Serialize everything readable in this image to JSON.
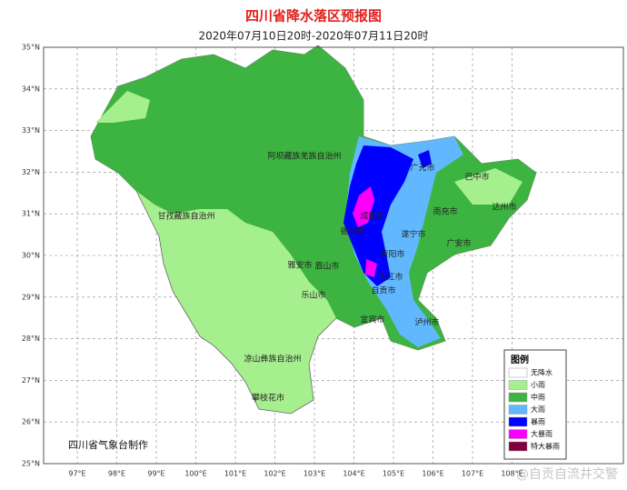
{
  "title": "四川省降水落区预报图",
  "subtitle": "2020年07月10日20时-2020年07月11日20时",
  "lat_labels": [
    "35°N",
    "34°N",
    "33°N",
    "32°N",
    "31°N",
    "30°N",
    "29°N",
    "28°N",
    "27°N",
    "26°N",
    "25°N"
  ],
  "lon_labels": [
    "97°E",
    "98°E",
    "99°E",
    "100°E",
    "101°E",
    "102°E",
    "103°E",
    "104°E",
    "105°E",
    "106°E",
    "107°E",
    "108°E"
  ],
  "places": [
    "阿坝藏族羌族自治州",
    "甘孜藏族自治州",
    "凉山彝族自治州",
    "攀枝花市",
    "雅安市",
    "眉山市",
    "乐山市",
    "成都市",
    "德阳市",
    "广元市",
    "巴中市",
    "达州市",
    "南充市",
    "遂宁市",
    "广安市",
    "资阳市",
    "内江市",
    "自贡市",
    "宜宾市",
    "泸州市"
  ],
  "legend": {
    "title": "图例",
    "items": [
      {
        "label": "无降水",
        "color": "#ffffff"
      },
      {
        "label": "小雨",
        "color": "#a6ef8f"
      },
      {
        "label": "中雨",
        "color": "#3db441"
      },
      {
        "label": "大雨",
        "color": "#61b8ff"
      },
      {
        "label": "暴雨",
        "color": "#0000fe"
      },
      {
        "label": "大暴雨",
        "color": "#fa00fa"
      },
      {
        "label": "特大暴雨",
        "color": "#810040"
      }
    ]
  },
  "credit": "四川省气象台制作",
  "watermark": "@自贡自流井交警"
}
